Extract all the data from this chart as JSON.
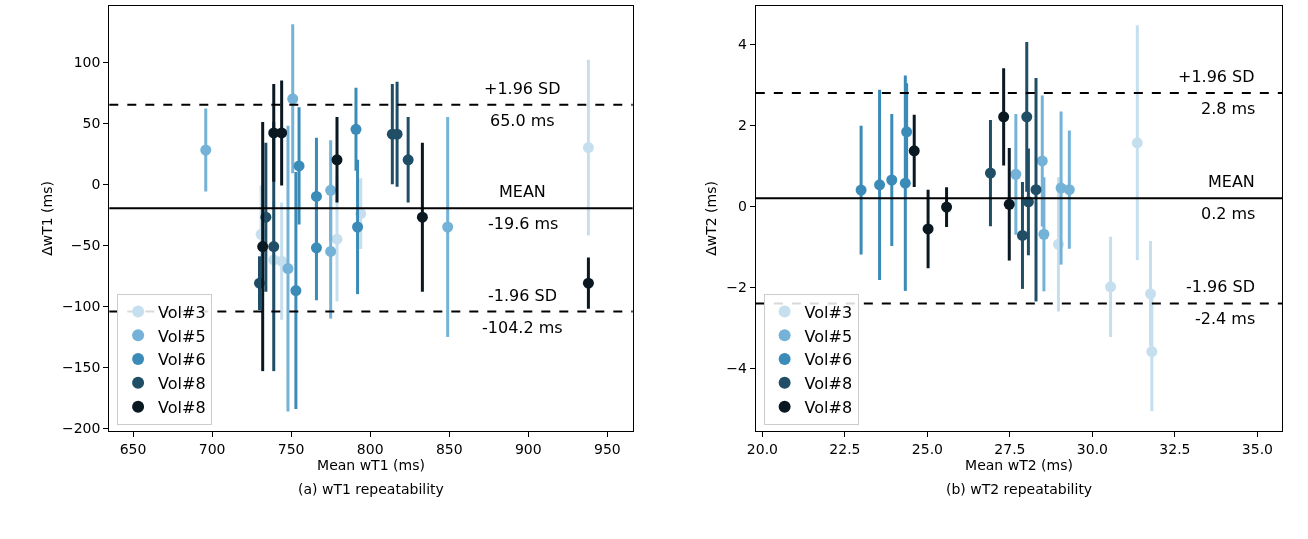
{
  "chart_data": [
    {
      "type": "scatter",
      "title": "(a) wT1 repeatability",
      "xlabel": "Mean wT1 (ms)",
      "ylabel": "ΔwT1 (ms)",
      "xlim": [
        635,
        966
      ],
      "ylim": [
        -202,
        146
      ],
      "xticks": [
        650,
        700,
        750,
        800,
        850,
        900,
        950
      ],
      "yticks": [
        {
          "value": -200,
          "label": "−200"
        },
        {
          "value": -150,
          "label": "−150"
        },
        {
          "value": -100,
          "label": "−100"
        },
        {
          "value": -50,
          "label": "−50"
        },
        0,
        50,
        100
      ],
      "marker": "circle",
      "legend": "bottom left",
      "series": [
        {
          "name": "Vol#3",
          "color": "#c6dfee",
          "x": [
            731,
            739,
            744,
            779,
            794,
            833,
            938
          ],
          "values": [
            -41,
            -62,
            -63,
            -45,
            -24,
            null,
            30
          ],
          "errors": [
            40,
            48,
            48,
            51,
            29,
            null,
            72
          ]
        },
        {
          "name": "Vol#5",
          "color": "#74b2d7",
          "x": [
            696,
            751,
            748,
            775,
            775,
            849
          ],
          "values": [
            28,
            70,
            -69,
            -5,
            -55,
            -35
          ],
          "errors": [
            34,
            61,
            117,
            41,
            55,
            90
          ]
        },
        {
          "name": "Vol#6",
          "color": "#3a8bb8",
          "x": [
            753,
            755,
            766,
            766,
            791,
            792
          ],
          "values": [
            -87,
            15,
            -10,
            -52,
            45,
            -35
          ],
          "errors": [
            97,
            48,
            48,
            43,
            34,
            55
          ]
        },
        {
          "name": "Vol#8",
          "color": "#1f4e66",
          "x": [
            730,
            734,
            739,
            814,
            817,
            824
          ],
          "values": [
            -81,
            -27,
            -51,
            41,
            41,
            20
          ],
          "errors": [
            22,
            61,
            102,
            41,
            43,
            35
          ]
        },
        {
          "name": "Vol#8",
          "color": "#0a1822",
          "x": [
            732,
            739,
            744,
            779,
            833,
            938
          ],
          "values": [
            -51,
            42,
            42,
            20,
            -27,
            -81
          ],
          "errors": [
            102,
            40,
            43,
            35,
            61,
            21
          ]
        }
      ],
      "ref_lines": [
        {
          "axis": "y",
          "value": 65.0,
          "label": "+1.96 SD\n65.0 ms",
          "color": "#000000",
          "line_style": "dashed"
        },
        {
          "axis": "y",
          "value": -19.6,
          "label": "MEAN\n-19.6 ms",
          "color": "#000000",
          "line_style": "solid"
        },
        {
          "axis": "y",
          "value": -104.2,
          "label": "-1.96 SD\n-104.2 ms",
          "color": "#000000",
          "line_style": "dashed"
        }
      ]
    },
    {
      "type": "scatter",
      "title": "(b) wT2 repeatability",
      "xlabel": "Mean wT2 (ms)",
      "ylabel": "ΔwT2 (ms)",
      "xlim": [
        19.8,
        35.75
      ],
      "ylim": [
        -5.55,
        4.95
      ],
      "xticks": [
        {
          "value": 20,
          "label": "20.0"
        },
        {
          "value": 22.5,
          "label": "22.5"
        },
        {
          "value": 25,
          "label": "25.0"
        },
        {
          "value": 27.5,
          "label": "27.5"
        },
        {
          "value": 30,
          "label": "30.0"
        },
        {
          "value": 32.5,
          "label": "32.5"
        },
        {
          "value": 35,
          "label": "35.0"
        }
      ],
      "yticks": [
        {
          "value": -4,
          "label": "−4"
        },
        {
          "value": -2,
          "label": "−2"
        },
        0,
        2,
        4
      ],
      "marker": "circle",
      "legend": "bottom left",
      "series": [
        {
          "name": "Vol#3",
          "color": "#c6dfee",
          "x": [
            28.97,
            30.55,
            31.36,
            31.76,
            31.8
          ],
          "values": [
            -0.94,
            -1.99,
            1.57,
            -2.16,
            -3.59
          ],
          "errors": [
            1.66,
            1.24,
            2.9,
            1.3,
            1.47
          ]
        },
        {
          "name": "Vol#5",
          "color": "#74b2d7",
          "x": [
            27.68,
            28.48,
            28.53,
            29.05,
            29.3
          ],
          "values": [
            0.79,
            1.12,
            -0.69,
            0.45,
            0.41
          ],
          "errors": [
            1.49,
            1.62,
            1.41,
            1.89,
            1.46
          ]
        },
        {
          "name": "Vol#6",
          "color": "#3a8bb8",
          "x": [
            22.99,
            23.55,
            23.92,
            24.33,
            24.37
          ],
          "values": [
            0.4,
            0.53,
            0.65,
            0.57,
            1.84
          ],
          "errors": [
            1.59,
            2.35,
            1.63,
            2.66,
            1.2
          ]
        },
        {
          "name": "Vol#8",
          "color": "#1f4e66",
          "x": [
            26.91,
            27.88,
            28.01,
            28.06,
            28.29
          ],
          "values": [
            0.82,
            -0.72,
            2.21,
            0.11,
            0.41
          ],
          "errors": [
            1.31,
            1.32,
            1.85,
            1.32,
            2.76
          ]
        },
        {
          "name": "Vol#8",
          "color": "#0a1822",
          "x": [
            24.6,
            25.02,
            25.58,
            27.31,
            27.48
          ],
          "values": [
            1.37,
            -0.56,
            -0.02,
            2.21,
            0.05
          ],
          "errors": [
            0.89,
            0.97,
            0.49,
            1.2,
            1.39
          ]
        }
      ],
      "ref_lines": [
        {
          "axis": "y",
          "value": 2.8,
          "label": "+1.96 SD\n2.8 ms",
          "color": "#000000",
          "line_style": "dashed"
        },
        {
          "axis": "y",
          "value": 0.2,
          "label": "MEAN\n0.2 ms",
          "color": "#000000",
          "line_style": "solid"
        },
        {
          "axis": "y",
          "value": -2.4,
          "label": "-1.96 SD\n-2.4 ms",
          "color": "#000000",
          "line_style": "dashed"
        }
      ]
    }
  ]
}
